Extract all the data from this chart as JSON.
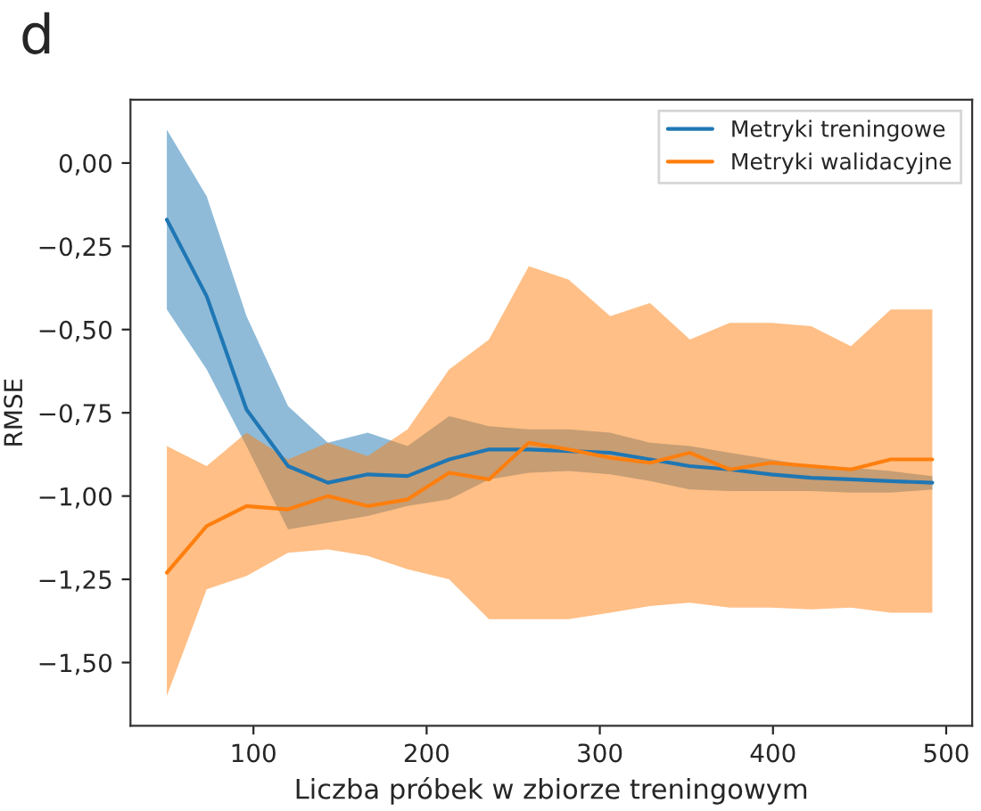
{
  "chart_data": {
    "type": "line",
    "xlabel": "Liczba próbek w zbiorze treningowym",
    "ylabel": "RMSE",
    "annotations": [
      "d"
    ],
    "x": [
      50,
      73,
      96,
      120,
      143,
      166,
      189,
      213,
      236,
      259,
      282,
      306,
      329,
      352,
      375,
      399,
      422,
      445,
      468,
      492
    ],
    "series": [
      {
        "name": "Metryki treningowe",
        "color": "#1f77b4",
        "values": [
          -0.17,
          -0.4,
          -0.74,
          -0.91,
          -0.96,
          -0.935,
          -0.94,
          -0.89,
          -0.86,
          -0.86,
          -0.865,
          -0.87,
          -0.89,
          -0.91,
          -0.92,
          -0.935,
          -0.945,
          -0.95,
          -0.955,
          -0.96
        ],
        "upper": [
          0.1,
          -0.1,
          -0.46,
          -0.73,
          -0.84,
          -0.81,
          -0.85,
          -0.76,
          -0.79,
          -0.8,
          -0.8,
          -0.81,
          -0.84,
          -0.85,
          -0.87,
          -0.89,
          -0.91,
          -0.915,
          -0.925,
          -0.94
        ],
        "lower": [
          -0.44,
          -0.62,
          -0.85,
          -1.1,
          -1.08,
          -1.06,
          -1.03,
          -1.01,
          -0.95,
          -0.93,
          -0.925,
          -0.935,
          -0.955,
          -0.98,
          -0.985,
          -0.985,
          -0.985,
          -0.99,
          -0.99,
          -0.98
        ]
      },
      {
        "name": "Metryki walidacyjne",
        "color": "#ff7f0e",
        "values": [
          -1.23,
          -1.09,
          -1.03,
          -1.04,
          -1.0,
          -1.03,
          -1.01,
          -0.93,
          -0.95,
          -0.84,
          -0.86,
          -0.885,
          -0.9,
          -0.87,
          -0.92,
          -0.9,
          -0.91,
          -0.92,
          -0.89,
          -0.89
        ],
        "upper": [
          -0.85,
          -0.91,
          -0.81,
          -0.89,
          -0.84,
          -0.88,
          -0.8,
          -0.62,
          -0.53,
          -0.31,
          -0.35,
          -0.46,
          -0.42,
          -0.53,
          -0.48,
          -0.48,
          -0.49,
          -0.55,
          -0.44,
          -0.44
        ],
        "lower": [
          -1.6,
          -1.28,
          -1.24,
          -1.17,
          -1.16,
          -1.18,
          -1.22,
          -1.25,
          -1.37,
          -1.37,
          -1.37,
          -1.35,
          -1.33,
          -1.32,
          -1.335,
          -1.335,
          -1.34,
          -1.335,
          -1.35,
          -1.35
        ]
      }
    ],
    "xlim": [
      29,
      515
    ],
    "ylim": [
      -1.69,
      0.19
    ],
    "xticks": [
      100,
      200,
      300,
      400,
      500
    ],
    "yticks": [
      {
        "value": -1.5,
        "label": "−1,50"
      },
      {
        "value": -1.25,
        "label": "−1,25"
      },
      {
        "value": -1.0,
        "label": "−1,00"
      },
      {
        "value": -0.75,
        "label": "−0,75"
      },
      {
        "value": -0.5,
        "label": "−0,50"
      },
      {
        "value": -0.25,
        "label": "−0,25"
      },
      {
        "value": 0.0,
        "label": "0,00"
      }
    ],
    "grid": false,
    "legend": "top right",
    "marker": "none",
    "line_style": "solid"
  }
}
